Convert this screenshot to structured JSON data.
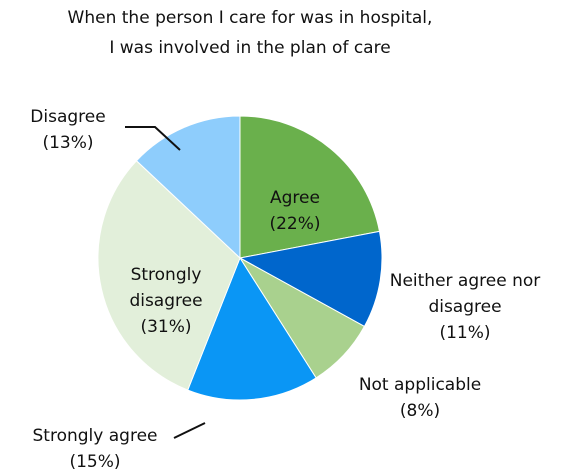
{
  "chart_data": {
    "type": "pie",
    "title": [
      "When the person I care for was in hospital,",
      "I was involved in the plan of care"
    ],
    "categories": [
      "Agree",
      "Neither agree nor disagree",
      "Not applicable",
      "Strongly agree",
      "Strongly disagree",
      "Disagree"
    ],
    "values": [
      22,
      11,
      8,
      15,
      31,
      13
    ],
    "value_labels": [
      "(22%)",
      "(11%)",
      "(8%)",
      "(15%)",
      "(31%)",
      "(13%)"
    ],
    "colors": [
      "#6ab04c",
      "#0066cc",
      "#a9d18e",
      "#0a96f5",
      "#e2efda",
      "#8ecdfc"
    ]
  }
}
